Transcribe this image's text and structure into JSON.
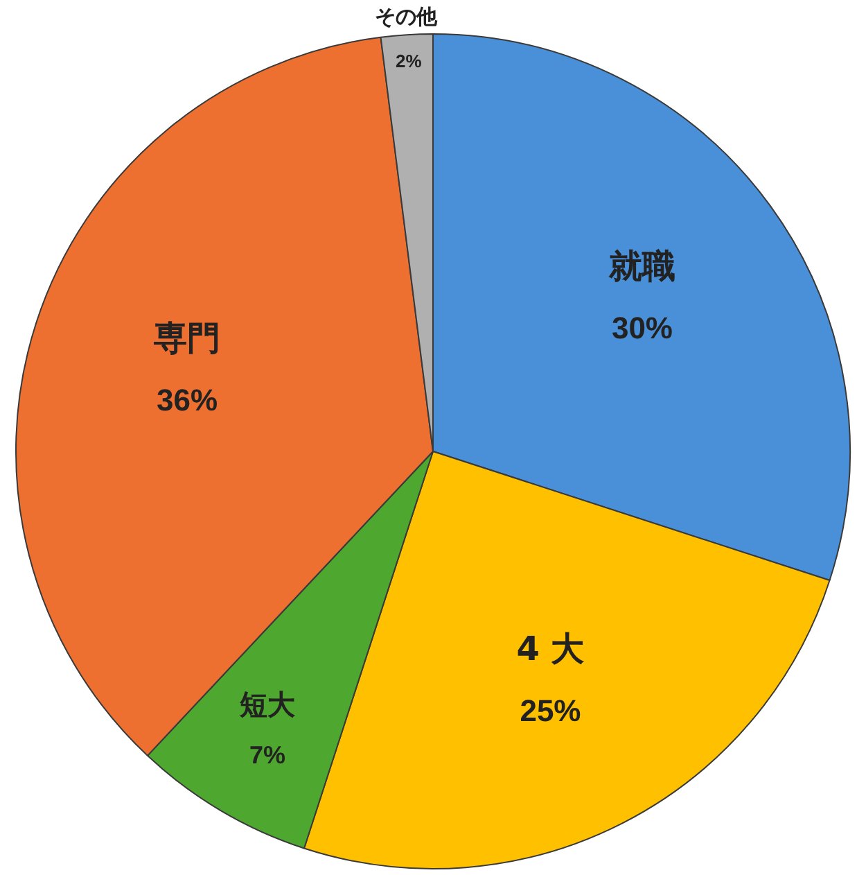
{
  "chart_data": {
    "type": "pie",
    "categories": [
      "就職",
      "4 大",
      "短大",
      "専門",
      "その他"
    ],
    "values": [
      30,
      25,
      7,
      36,
      2
    ],
    "value_labels": [
      "30%",
      "25%",
      "7%",
      "36%",
      "2%"
    ],
    "colors": [
      "#4a90d9",
      "#ffc000",
      "#4ea72e",
      "#ed7031",
      "#b0b0b0"
    ]
  }
}
